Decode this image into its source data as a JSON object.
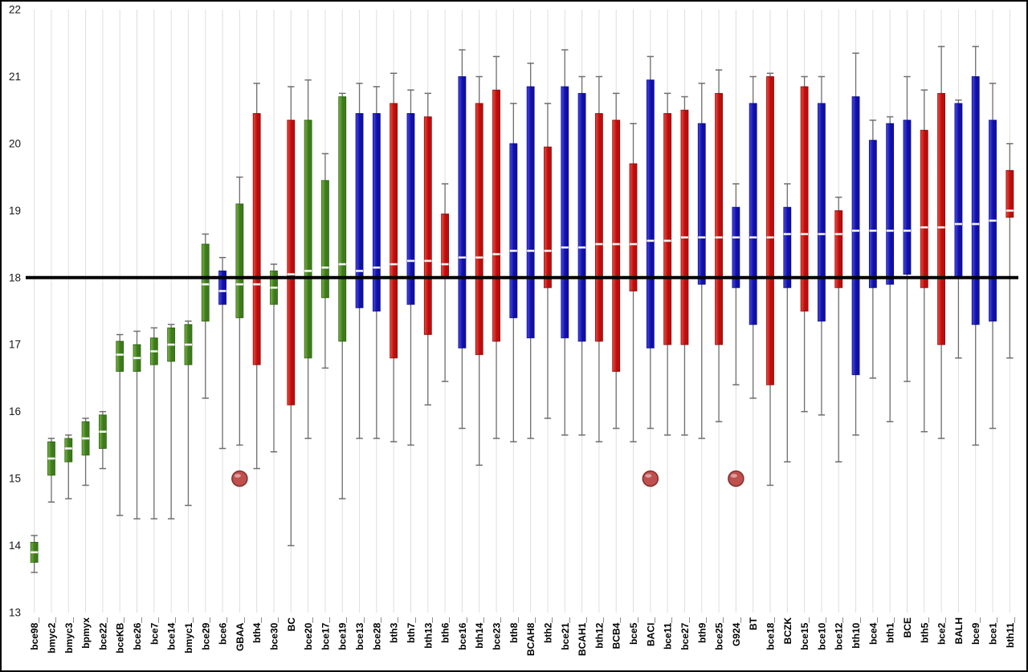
{
  "chart_data": {
    "type": "boxplot",
    "title": "",
    "xlabel": "",
    "ylabel": "",
    "ylim": [
      13,
      22
    ],
    "yticks": [
      13,
      14,
      15,
      16,
      17,
      18,
      19,
      20,
      21,
      22
    ],
    "reference_line": 18,
    "grid": "vertical-per-category",
    "legend": "none",
    "colors": {
      "green": "#4e8c28",
      "blue": "#1c1ccc",
      "red": "#d42020",
      "marker": "#c0504d",
      "reference": "#000000"
    },
    "markers": [
      {
        "category": "GBAA_",
        "value": 15.0
      },
      {
        "category": "BACI_",
        "value": 15.0
      },
      {
        "category": "G924_",
        "value": 15.0
      }
    ],
    "series": [
      {
        "label": "bce98_",
        "color": "green",
        "whisker_low": 13.6,
        "box_low": 13.75,
        "box_high": 14.05,
        "whisker_high": 14.15,
        "median": 13.9
      },
      {
        "label": "bmyc2_",
        "color": "green",
        "whisker_low": 14.65,
        "box_low": 15.05,
        "box_high": 15.55,
        "whisker_high": 15.6,
        "median": 15.3
      },
      {
        "label": "bmyc3_",
        "color": "green",
        "whisker_low": 14.7,
        "box_low": 15.25,
        "box_high": 15.6,
        "whisker_high": 15.65,
        "median": 15.45
      },
      {
        "label": "bpmyx",
        "color": "green",
        "whisker_low": 14.9,
        "box_low": 15.35,
        "box_high": 15.85,
        "whisker_high": 15.9,
        "median": 15.6
      },
      {
        "label": "bce22_",
        "color": "green",
        "whisker_low": 15.15,
        "box_low": 15.45,
        "box_high": 15.95,
        "whisker_high": 16.0,
        "median": 15.7
      },
      {
        "label": "bceKB_",
        "color": "green",
        "whisker_low": 14.45,
        "box_low": 16.6,
        "box_high": 17.05,
        "whisker_high": 17.15,
        "median": 16.85
      },
      {
        "label": "bce26_",
        "color": "green",
        "whisker_low": 14.4,
        "box_low": 16.6,
        "box_high": 17.0,
        "whisker_high": 17.2,
        "median": 16.8
      },
      {
        "label": "bce7_",
        "color": "green",
        "whisker_low": 14.4,
        "box_low": 16.7,
        "box_high": 17.1,
        "whisker_high": 17.25,
        "median": 16.9
      },
      {
        "label": "bce14_",
        "color": "green",
        "whisker_low": 14.4,
        "box_low": 16.75,
        "box_high": 17.25,
        "whisker_high": 17.3,
        "median": 17.0
      },
      {
        "label": "bmyc1_",
        "color": "green",
        "whisker_low": 14.6,
        "box_low": 16.7,
        "box_high": 17.3,
        "whisker_high": 17.35,
        "median": 17.0
      },
      {
        "label": "bce29_",
        "color": "green",
        "whisker_low": 16.2,
        "box_low": 17.35,
        "box_high": 18.5,
        "whisker_high": 18.65,
        "median": 17.9
      },
      {
        "label": "bce6_",
        "color": "blue",
        "whisker_low": 15.45,
        "box_low": 17.6,
        "box_high": 18.1,
        "whisker_high": 18.3,
        "median": 17.8
      },
      {
        "label": "GBAA_",
        "color": "green",
        "whisker_low": 15.5,
        "box_low": 17.4,
        "box_high": 19.1,
        "whisker_high": 19.5,
        "median": 17.9
      },
      {
        "label": "bth4_",
        "color": "red",
        "whisker_low": 15.15,
        "box_low": 16.7,
        "box_high": 20.45,
        "whisker_high": 20.9,
        "median": 17.9
      },
      {
        "label": "bce30_",
        "color": "green",
        "whisker_low": 15.4,
        "box_low": 17.6,
        "box_high": 18.1,
        "whisker_high": 18.2,
        "median": 17.85
      },
      {
        "label": "BC",
        "color": "red",
        "whisker_low": 14.0,
        "box_low": 16.1,
        "box_high": 20.35,
        "whisker_high": 20.85,
        "median": 18.05
      },
      {
        "label": "bce20_",
        "color": "green",
        "whisker_low": 15.6,
        "box_low": 16.8,
        "box_high": 20.35,
        "whisker_high": 20.95,
        "median": 18.1
      },
      {
        "label": "bce17_",
        "color": "green",
        "whisker_low": 16.65,
        "box_low": 17.7,
        "box_high": 19.45,
        "whisker_high": 19.85,
        "median": 18.15
      },
      {
        "label": "bce19_",
        "color": "green",
        "whisker_low": 14.7,
        "box_low": 17.05,
        "box_high": 20.7,
        "whisker_high": 20.75,
        "median": 18.2
      },
      {
        "label": "bce13_",
        "color": "blue",
        "whisker_low": 15.6,
        "box_low": 17.55,
        "box_high": 20.45,
        "whisker_high": 20.9,
        "median": 18.1
      },
      {
        "label": "bce28_",
        "color": "blue",
        "whisker_low": 15.6,
        "box_low": 17.5,
        "box_high": 20.45,
        "whisker_high": 20.85,
        "median": 18.15
      },
      {
        "label": "bth3_",
        "color": "red",
        "whisker_low": 15.55,
        "box_low": 16.8,
        "box_high": 20.6,
        "whisker_high": 21.05,
        "median": 18.2
      },
      {
        "label": "bth7_",
        "color": "blue",
        "whisker_low": 15.5,
        "box_low": 17.6,
        "box_high": 20.45,
        "whisker_high": 20.8,
        "median": 18.25
      },
      {
        "label": "bth13_",
        "color": "red",
        "whisker_low": 16.1,
        "box_low": 17.15,
        "box_high": 20.4,
        "whisker_high": 20.75,
        "median": 18.25
      },
      {
        "label": "bth6_",
        "color": "red",
        "whisker_low": 16.45,
        "box_low": 18.0,
        "box_high": 18.95,
        "whisker_high": 19.4,
        "median": 18.2
      },
      {
        "label": "bce16_",
        "color": "blue",
        "whisker_low": 15.75,
        "box_low": 16.95,
        "box_high": 21.0,
        "whisker_high": 21.4,
        "median": 18.3
      },
      {
        "label": "bth14_",
        "color": "red",
        "whisker_low": 15.2,
        "box_low": 16.85,
        "box_high": 20.6,
        "whisker_high": 21.0,
        "median": 18.3
      },
      {
        "label": "bce23_",
        "color": "red",
        "whisker_low": 15.6,
        "box_low": 17.05,
        "box_high": 20.8,
        "whisker_high": 21.3,
        "median": 18.35
      },
      {
        "label": "bth8_",
        "color": "blue",
        "whisker_low": 15.55,
        "box_low": 17.4,
        "box_high": 20.0,
        "whisker_high": 20.6,
        "median": 18.4
      },
      {
        "label": "BCAH8_",
        "color": "blue",
        "whisker_low": 15.6,
        "box_low": 17.1,
        "box_high": 20.85,
        "whisker_high": 21.2,
        "median": 18.4
      },
      {
        "label": "bth2_",
        "color": "red",
        "whisker_low": 15.9,
        "box_low": 17.85,
        "box_high": 19.95,
        "whisker_high": 20.6,
        "median": 18.4
      },
      {
        "label": "bce21_",
        "color": "blue",
        "whisker_low": 15.65,
        "box_low": 17.1,
        "box_high": 20.85,
        "whisker_high": 21.4,
        "median": 18.45
      },
      {
        "label": "BCAH1_",
        "color": "blue",
        "whisker_low": 15.65,
        "box_low": 17.05,
        "box_high": 20.75,
        "whisker_high": 21.0,
        "median": 18.45
      },
      {
        "label": "bth12_",
        "color": "red",
        "whisker_low": 15.55,
        "box_low": 17.05,
        "box_high": 20.45,
        "whisker_high": 21.0,
        "median": 18.5
      },
      {
        "label": "BCB4_",
        "color": "red",
        "whisker_low": 15.75,
        "box_low": 16.6,
        "box_high": 20.35,
        "whisker_high": 20.75,
        "median": 18.5
      },
      {
        "label": "bce5_",
        "color": "red",
        "whisker_low": 15.55,
        "box_low": 17.8,
        "box_high": 19.7,
        "whisker_high": 20.3,
        "median": 18.5
      },
      {
        "label": "BACI_",
        "color": "blue",
        "whisker_low": 15.75,
        "box_low": 16.95,
        "box_high": 20.95,
        "whisker_high": 21.3,
        "median": 18.55
      },
      {
        "label": "bce11_",
        "color": "red",
        "whisker_low": 15.65,
        "box_low": 17.0,
        "box_high": 20.45,
        "whisker_high": 20.75,
        "median": 18.55
      },
      {
        "label": "bce27_",
        "color": "red",
        "whisker_low": 15.65,
        "box_low": 17.0,
        "box_high": 20.5,
        "whisker_high": 20.7,
        "median": 18.6
      },
      {
        "label": "bth9_",
        "color": "blue",
        "whisker_low": 15.6,
        "box_low": 17.9,
        "box_high": 20.3,
        "whisker_high": 20.9,
        "median": 18.6
      },
      {
        "label": "bce25_",
        "color": "red",
        "whisker_low": 15.85,
        "box_low": 17.0,
        "box_high": 20.75,
        "whisker_high": 21.1,
        "median": 18.6
      },
      {
        "label": "G924_",
        "color": "blue",
        "whisker_low": 16.4,
        "box_low": 17.85,
        "box_high": 19.05,
        "whisker_high": 19.4,
        "median": 18.6
      },
      {
        "label": "BT",
        "color": "blue",
        "whisker_low": 16.2,
        "box_low": 17.3,
        "box_high": 20.6,
        "whisker_high": 21.0,
        "median": 18.6
      },
      {
        "label": "bce18_",
        "color": "red",
        "whisker_low": 14.9,
        "box_low": 16.4,
        "box_high": 21.0,
        "whisker_high": 21.05,
        "median": 18.6
      },
      {
        "label": "BCZK",
        "color": "blue",
        "whisker_low": 15.25,
        "box_low": 17.85,
        "box_high": 19.05,
        "whisker_high": 19.4,
        "median": 18.65
      },
      {
        "label": "bce15_",
        "color": "red",
        "whisker_low": 16.0,
        "box_low": 17.5,
        "box_high": 20.85,
        "whisker_high": 21.0,
        "median": 18.65
      },
      {
        "label": "bce10_",
        "color": "blue",
        "whisker_low": 15.95,
        "box_low": 17.35,
        "box_high": 20.6,
        "whisker_high": 21.0,
        "median": 18.65
      },
      {
        "label": "bce12_",
        "color": "red",
        "whisker_low": 15.25,
        "box_low": 17.85,
        "box_high": 19.0,
        "whisker_high": 19.2,
        "median": 18.65
      },
      {
        "label": "bth10_",
        "color": "blue",
        "whisker_low": 15.65,
        "box_low": 16.55,
        "box_high": 20.7,
        "whisker_high": 21.35,
        "median": 18.7
      },
      {
        "label": "bce4_",
        "color": "blue",
        "whisker_low": 16.5,
        "box_low": 17.85,
        "box_high": 20.05,
        "whisker_high": 20.35,
        "median": 18.7
      },
      {
        "label": "bth1_",
        "color": "blue",
        "whisker_low": 15.85,
        "box_low": 17.9,
        "box_high": 20.3,
        "whisker_high": 20.4,
        "median": 18.7
      },
      {
        "label": "BCE",
        "color": "blue",
        "whisker_low": 16.45,
        "box_low": 18.05,
        "box_high": 20.35,
        "whisker_high": 21.0,
        "median": 18.7
      },
      {
        "label": "bth5_",
        "color": "red",
        "whisker_low": 15.7,
        "box_low": 17.85,
        "box_high": 20.2,
        "whisker_high": 20.8,
        "median": 18.75
      },
      {
        "label": "bce2_",
        "color": "red",
        "whisker_low": 15.6,
        "box_low": 17.0,
        "box_high": 20.75,
        "whisker_high": 21.45,
        "median": 18.75
      },
      {
        "label": "BALH",
        "color": "blue",
        "whisker_low": 16.8,
        "box_low": 18.0,
        "box_high": 20.6,
        "whisker_high": 20.65,
        "median": 18.8
      },
      {
        "label": "bce9_",
        "color": "blue",
        "whisker_low": 15.5,
        "box_low": 17.3,
        "box_high": 21.0,
        "whisker_high": 21.45,
        "median": 18.8
      },
      {
        "label": "bce1_",
        "color": "blue",
        "whisker_low": 15.75,
        "box_low": 17.35,
        "box_high": 20.35,
        "whisker_high": 20.9,
        "median": 18.85
      },
      {
        "label": "bth11_",
        "color": "red",
        "whisker_low": 16.8,
        "box_low": 18.9,
        "box_high": 19.6,
        "whisker_high": 20.0,
        "median": 19.0
      }
    ]
  }
}
